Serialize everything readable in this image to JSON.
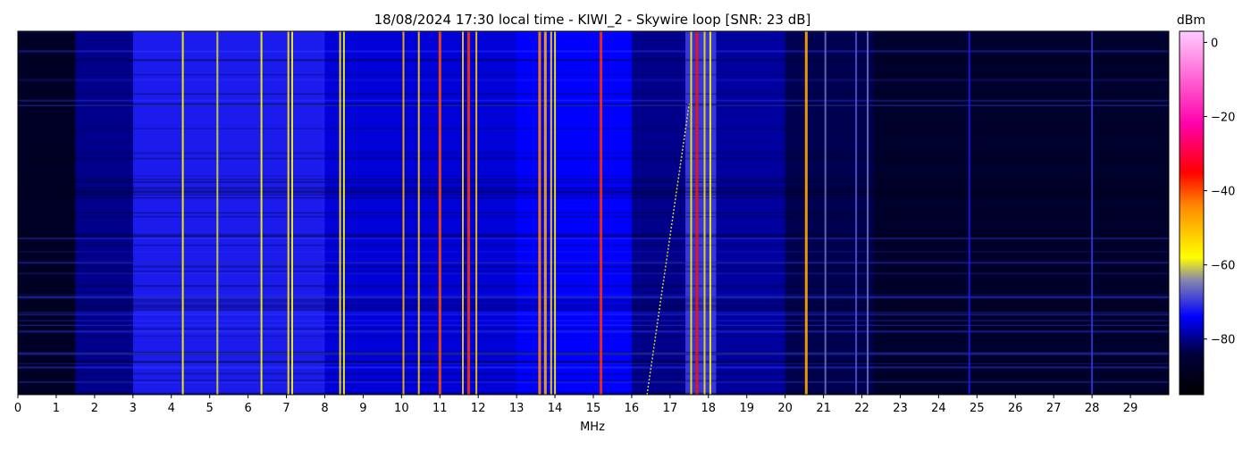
{
  "chart_data": {
    "type": "heatmap",
    "title": "18/08/2024 17:30 local time - KIWI_2 - Skywire loop [SNR: 23 dB]",
    "xlabel": "MHz",
    "ylabel": "",
    "xlim": [
      0,
      30
    ],
    "x_ticks": [
      "0",
      "1",
      "2",
      "3",
      "4",
      "5",
      "6",
      "7",
      "8",
      "9",
      "10",
      "11",
      "12",
      "13",
      "14",
      "15",
      "16",
      "17",
      "18",
      "19",
      "20",
      "21",
      "22",
      "23",
      "24",
      "25",
      "26",
      "27",
      "28",
      "29"
    ],
    "colorbar": {
      "label": "dBm",
      "range": [
        -95,
        3
      ],
      "ticks": [
        "0",
        "−20",
        "−40",
        "−60",
        "−80"
      ],
      "tick_values": [
        0,
        -20,
        -40,
        -60,
        -80
      ],
      "colormap": [
        {
          "value": -95,
          "color": "#000000"
        },
        {
          "value": -84,
          "color": "#00003c"
        },
        {
          "value": -74,
          "color": "#0000ff"
        },
        {
          "value": -64,
          "color": "#8888aa"
        },
        {
          "value": -58,
          "color": "#ffff00"
        },
        {
          "value": -44,
          "color": "#ff8800"
        },
        {
          "value": -35,
          "color": "#ff0000"
        },
        {
          "value": -22,
          "color": "#ff00aa"
        },
        {
          "value": 3,
          "color": "#ffccff"
        }
      ]
    },
    "band_profile_mhz": [
      {
        "from": 0.0,
        "to": 1.5,
        "level_dbm": -88
      },
      {
        "from": 1.5,
        "to": 3.0,
        "level_dbm": -80
      },
      {
        "from": 3.0,
        "to": 8.0,
        "level_dbm": -72
      },
      {
        "from": 8.0,
        "to": 13.0,
        "level_dbm": -76
      },
      {
        "from": 13.0,
        "to": 16.0,
        "level_dbm": -74
      },
      {
        "from": 16.0,
        "to": 17.4,
        "level_dbm": -80
      },
      {
        "from": 17.4,
        "to": 18.2,
        "level_dbm": -70
      },
      {
        "from": 18.2,
        "to": 20.0,
        "level_dbm": -79
      },
      {
        "from": 20.0,
        "to": 22.3,
        "level_dbm": -83
      },
      {
        "from": 22.3,
        "to": 30.0,
        "level_dbm": -87
      }
    ],
    "strong_signals_mhz": [
      {
        "freq": 4.3,
        "level_dbm": -58
      },
      {
        "freq": 5.2,
        "level_dbm": -60
      },
      {
        "freq": 6.35,
        "level_dbm": -58
      },
      {
        "freq": 7.05,
        "level_dbm": -56
      },
      {
        "freq": 7.15,
        "level_dbm": -58
      },
      {
        "freq": 8.4,
        "level_dbm": -56
      },
      {
        "freq": 8.5,
        "level_dbm": -58
      },
      {
        "freq": 10.05,
        "level_dbm": -50
      },
      {
        "freq": 10.45,
        "level_dbm": -52
      },
      {
        "freq": 11.0,
        "level_dbm": -40
      },
      {
        "freq": 11.6,
        "level_dbm": -52
      },
      {
        "freq": 11.75,
        "level_dbm": -38
      },
      {
        "freq": 11.95,
        "level_dbm": -52
      },
      {
        "freq": 13.6,
        "level_dbm": -44
      },
      {
        "freq": 13.75,
        "level_dbm": -48
      },
      {
        "freq": 13.9,
        "level_dbm": -54
      },
      {
        "freq": 14.0,
        "level_dbm": -56
      },
      {
        "freq": 15.2,
        "level_dbm": -38
      },
      {
        "freq": 17.55,
        "level_dbm": -56
      },
      {
        "freq": 17.7,
        "level_dbm": -36
      },
      {
        "freq": 17.9,
        "level_dbm": -54
      },
      {
        "freq": 18.05,
        "level_dbm": -58
      },
      {
        "freq": 20.55,
        "level_dbm": -48
      },
      {
        "freq": 21.05,
        "level_dbm": -66
      },
      {
        "freq": 21.85,
        "level_dbm": -68
      },
      {
        "freq": 22.15,
        "level_dbm": -66
      },
      {
        "freq": 24.8,
        "level_dbm": -72
      },
      {
        "freq": 28.0,
        "level_dbm": -70
      }
    ],
    "sweep_trace_mhz": {
      "from_freq": 16.4,
      "to_freq": 17.5,
      "level_dbm": -60
    },
    "grid": false
  }
}
